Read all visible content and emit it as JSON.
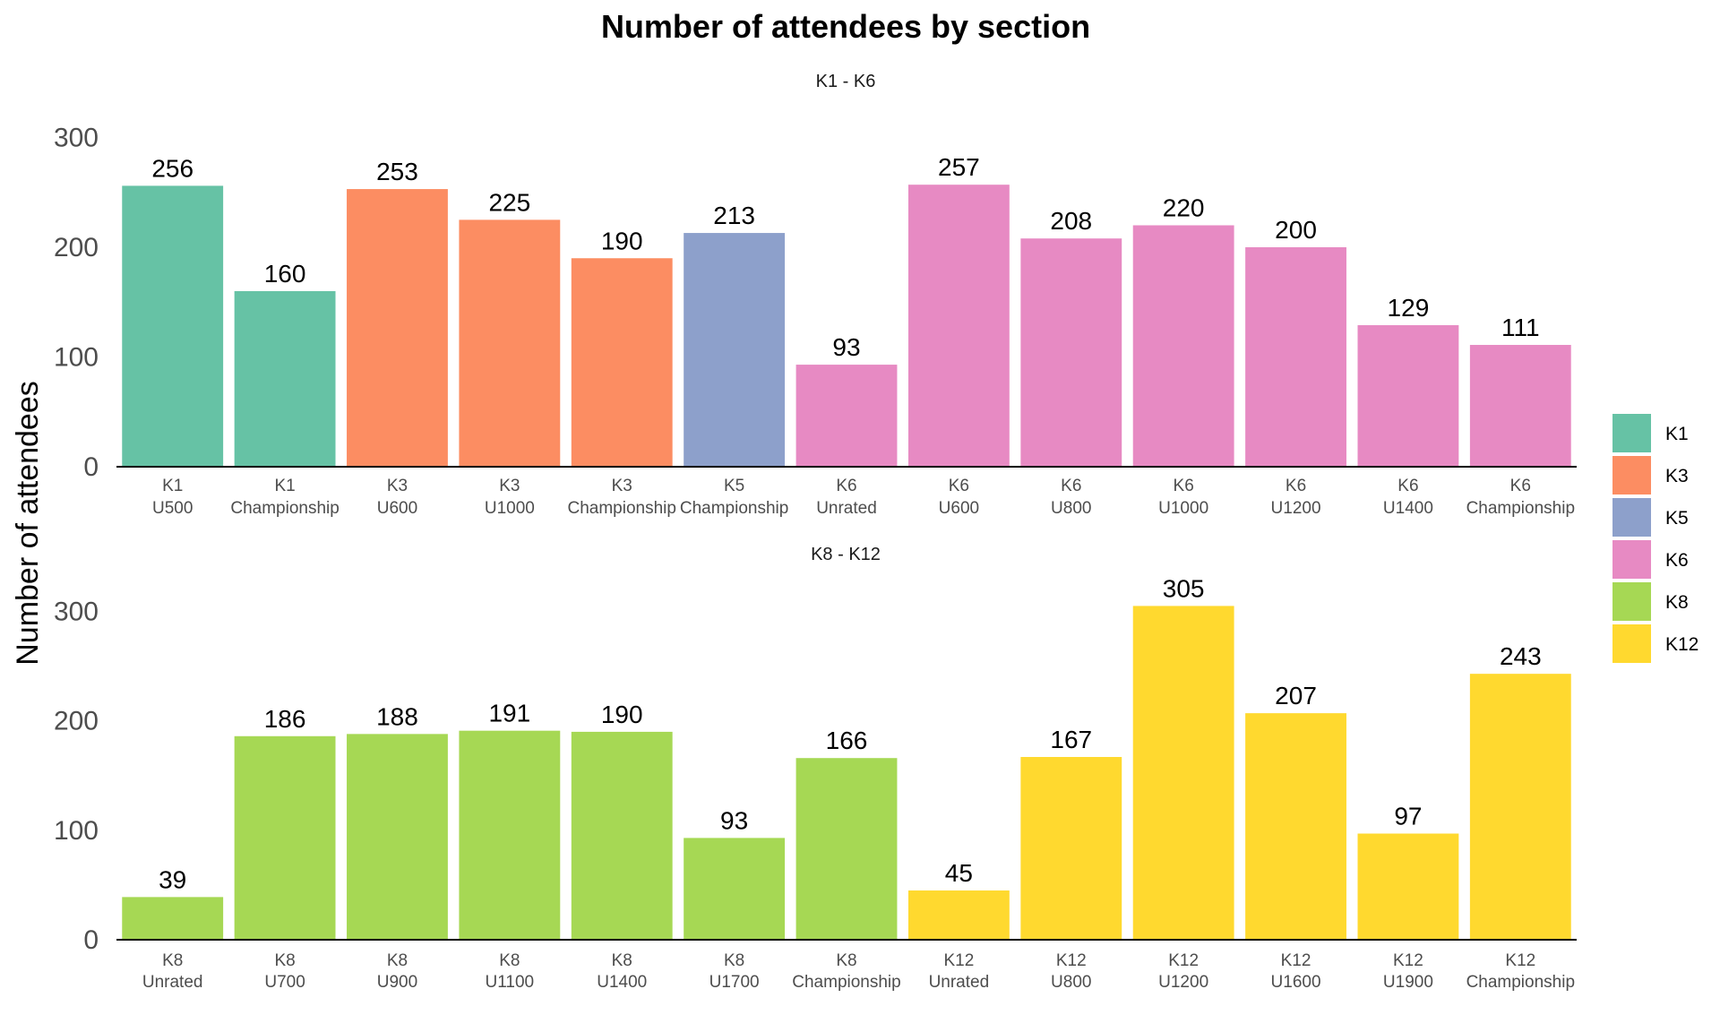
{
  "chart_data": {
    "type": "bar",
    "title": "Number of attendees by section",
    "ylabel": "Number of attendees",
    "ylim": [
      0,
      305
    ],
    "yticks": [
      0,
      100,
      200,
      300
    ],
    "legend": {
      "placement": "right",
      "entries": [
        {
          "name": "K1",
          "color": "#66c2a5"
        },
        {
          "name": "K3",
          "color": "#fc8d62"
        },
        {
          "name": "K5",
          "color": "#8da0cb"
        },
        {
          "name": "K6",
          "color": "#e78ac3"
        },
        {
          "name": "K8",
          "color": "#a6d854"
        },
        {
          "name": "K12",
          "color": "#ffd92f"
        }
      ]
    },
    "panels": [
      {
        "subtitle": "K1 - K6",
        "bars": [
          {
            "grade": "K1",
            "section": "U500",
            "value": 256
          },
          {
            "grade": "K1",
            "section": "Championship",
            "value": 160
          },
          {
            "grade": "K3",
            "section": "U600",
            "value": 253
          },
          {
            "grade": "K3",
            "section": "U1000",
            "value": 225
          },
          {
            "grade": "K3",
            "section": "Championship",
            "value": 190
          },
          {
            "grade": "K5",
            "section": "Championship",
            "value": 213
          },
          {
            "grade": "K6",
            "section": "Unrated",
            "value": 93
          },
          {
            "grade": "K6",
            "section": "U600",
            "value": 257
          },
          {
            "grade": "K6",
            "section": "U800",
            "value": 208
          },
          {
            "grade": "K6",
            "section": "U1000",
            "value": 220
          },
          {
            "grade": "K6",
            "section": "U1200",
            "value": 200
          },
          {
            "grade": "K6",
            "section": "U1400",
            "value": 129
          },
          {
            "grade": "K6",
            "section": "Championship",
            "value": 111
          }
        ]
      },
      {
        "subtitle": "K8 - K12",
        "bars": [
          {
            "grade": "K8",
            "section": "Unrated",
            "value": 39
          },
          {
            "grade": "K8",
            "section": "U700",
            "value": 186
          },
          {
            "grade": "K8",
            "section": "U900",
            "value": 188
          },
          {
            "grade": "K8",
            "section": "U1100",
            "value": 191
          },
          {
            "grade": "K8",
            "section": "U1400",
            "value": 190
          },
          {
            "grade": "K8",
            "section": "U1700",
            "value": 93
          },
          {
            "grade": "K8",
            "section": "Championship",
            "value": 166
          },
          {
            "grade": "K12",
            "section": "Unrated",
            "value": 45
          },
          {
            "grade": "K12",
            "section": "U800",
            "value": 167
          },
          {
            "grade": "K12",
            "section": "U1200",
            "value": 305
          },
          {
            "grade": "K12",
            "section": "U1600",
            "value": 207
          },
          {
            "grade": "K12",
            "section": "U1900",
            "value": 97
          },
          {
            "grade": "K12",
            "section": "Championship",
            "value": 243
          }
        ]
      }
    ]
  }
}
